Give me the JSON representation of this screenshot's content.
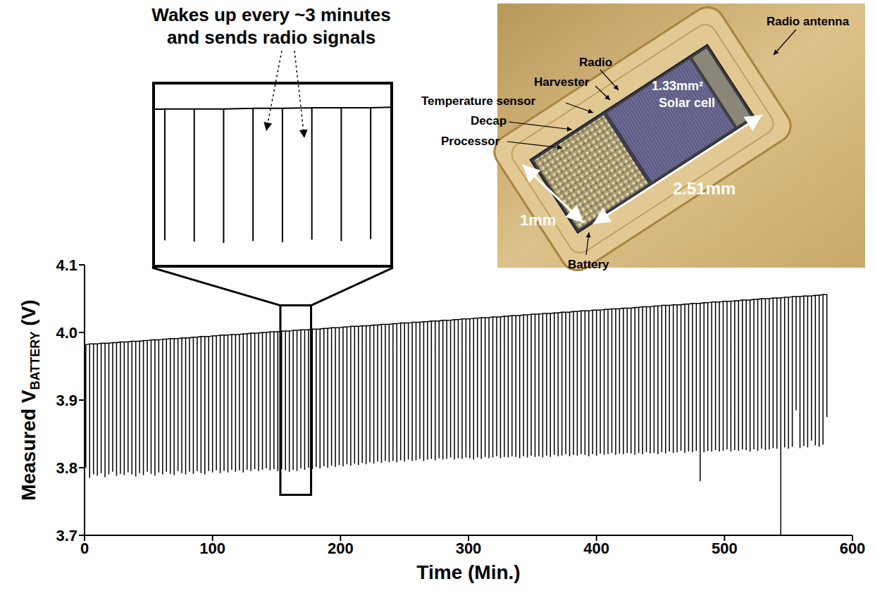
{
  "chart_data": [
    {
      "type": "line",
      "xlabel": "Time (Min.)",
      "ylabel": [
        "Measured V",
        "BATTERY",
        " (V)"
      ],
      "annotation": [
        "Wakes up every ~3 minutes",
        "and sends radio signals"
      ],
      "color": "#000000",
      "grid": false,
      "xlim": [
        0,
        600
      ],
      "xticks": [
        0,
        100,
        200,
        300,
        400,
        500,
        600
      ],
      "ylim": [
        3.7,
        4.1
      ],
      "yticks": [
        3.7,
        3.8,
        3.9,
        {
          "value": 4,
          "label": "4.0"
        },
        4.1
      ],
      "x": [
        1,
        4,
        7,
        10,
        13,
        16,
        19,
        22,
        25,
        28,
        31,
        34,
        37,
        40,
        43,
        46,
        49,
        52,
        55,
        58,
        61,
        64,
        67,
        70,
        73,
        76,
        79,
        82,
        85,
        88,
        91,
        94,
        97,
        100,
        103,
        106,
        109,
        112,
        115,
        118,
        121,
        124,
        127,
        130,
        133,
        136,
        139,
        142,
        145,
        148,
        151,
        154,
        157,
        160,
        163,
        166,
        169,
        172,
        175,
        178,
        181,
        184,
        187,
        190,
        193,
        196,
        199,
        202,
        205,
        208,
        211,
        214,
        217,
        220,
        223,
        226,
        229,
        232,
        235,
        238,
        241,
        244,
        247,
        250,
        253,
        256,
        259,
        262,
        265,
        268,
        271,
        274,
        277,
        280,
        283,
        286,
        289,
        292,
        295,
        298,
        301,
        304,
        307,
        310,
        313,
        316,
        319,
        322,
        325,
        328,
        331,
        334,
        337,
        340,
        343,
        346,
        349,
        352,
        355,
        358,
        361,
        364,
        367,
        370,
        373,
        376,
        379,
        382,
        385,
        388,
        391,
        394,
        397,
        400,
        403,
        406,
        409,
        412,
        415,
        418,
        421,
        424,
        427,
        430,
        433,
        436,
        439,
        442,
        445,
        448,
        451,
        454,
        457,
        460,
        463,
        466,
        469,
        472,
        475,
        478,
        481,
        484,
        487,
        490,
        493,
        496,
        499,
        502,
        505,
        508,
        511,
        514,
        517,
        520,
        523,
        526,
        529,
        532,
        535,
        538,
        541,
        544,
        547,
        550,
        553,
        556,
        559,
        562,
        565,
        568,
        571,
        574,
        577,
        580
      ],
      "high": [
        3.982,
        3.983,
        3.983,
        3.983,
        3.984,
        3.984,
        3.984,
        3.985,
        3.985,
        3.986,
        3.986,
        3.986,
        3.987,
        3.987,
        3.987,
        3.988,
        3.988,
        3.989,
        3.989,
        3.989,
        3.99,
        3.99,
        3.991,
        3.991,
        3.991,
        3.992,
        3.992,
        3.992,
        3.993,
        3.993,
        3.994,
        3.994,
        3.994,
        3.995,
        3.995,
        3.996,
        3.996,
        3.996,
        3.997,
        3.997,
        3.997,
        3.998,
        3.998,
        3.999,
        3.999,
        3.999,
        4.0,
        4.0,
        4.001,
        4.001,
        4.001,
        4.002,
        4.002,
        4.002,
        4.003,
        4.003,
        4.004,
        4.004,
        4.004,
        4.005,
        4.005,
        4.005,
        4.006,
        4.006,
        4.007,
        4.007,
        4.007,
        4.008,
        4.008,
        4.009,
        4.009,
        4.009,
        4.01,
        4.01,
        4.01,
        4.011,
        4.011,
        4.012,
        4.012,
        4.012,
        4.013,
        4.013,
        4.014,
        4.014,
        4.014,
        4.015,
        4.015,
        4.015,
        4.016,
        4.016,
        4.017,
        4.017,
        4.017,
        4.018,
        4.018,
        4.018,
        4.019,
        4.019,
        4.02,
        4.02,
        4.02,
        4.021,
        4.021,
        4.022,
        4.022,
        4.022,
        4.023,
        4.023,
        4.023,
        4.024,
        4.024,
        4.025,
        4.025,
        4.025,
        4.026,
        4.026,
        4.027,
        4.027,
        4.027,
        4.028,
        4.028,
        4.028,
        4.029,
        4.029,
        4.03,
        4.03,
        4.03,
        4.031,
        4.031,
        4.032,
        4.032,
        4.032,
        4.033,
        4.033,
        4.033,
        4.034,
        4.034,
        4.035,
        4.035,
        4.035,
        4.036,
        4.036,
        4.036,
        4.037,
        4.037,
        4.038,
        4.038,
        4.038,
        4.039,
        4.039,
        4.04,
        4.04,
        4.04,
        4.041,
        4.041,
        4.041,
        4.042,
        4.042,
        4.043,
        4.043,
        4.043,
        4.044,
        4.044,
        4.045,
        4.045,
        4.045,
        4.046,
        4.046,
        4.046,
        4.047,
        4.047,
        4.048,
        4.048,
        4.048,
        4.049,
        4.049,
        4.05,
        4.05,
        4.05,
        4.051,
        4.051,
        4.051,
        4.052,
        4.052,
        4.053,
        4.053,
        4.053,
        4.054,
        4.054,
        4.054,
        4.055,
        4.055,
        4.056,
        4.056
      ],
      "low": [
        3.8,
        3.785,
        3.79,
        3.788,
        3.792,
        3.786,
        3.79,
        3.794,
        3.788,
        3.791,
        3.789,
        3.793,
        3.79,
        3.787,
        3.792,
        3.789,
        3.794,
        3.791,
        3.788,
        3.793,
        3.79,
        3.794,
        3.791,
        3.789,
        3.795,
        3.792,
        3.79,
        3.794,
        3.791,
        3.795,
        3.792,
        3.79,
        3.795,
        3.793,
        3.796,
        3.792,
        3.795,
        3.793,
        3.797,
        3.794,
        3.796,
        3.793,
        3.797,
        3.795,
        3.798,
        3.795,
        3.797,
        3.799,
        3.796,
        3.798,
        3.795,
        3.798,
        3.796,
        3.794,
        3.797,
        3.795,
        3.799,
        3.797,
        3.8,
        3.798,
        3.801,
        3.799,
        3.802,
        3.8,
        3.803,
        3.801,
        3.804,
        3.802,
        3.805,
        3.803,
        3.806,
        3.804,
        3.807,
        3.805,
        3.808,
        3.806,
        3.809,
        3.807,
        3.81,
        3.808,
        3.81,
        3.808,
        3.811,
        3.809,
        3.812,
        3.81,
        3.811,
        3.813,
        3.81,
        3.812,
        3.813,
        3.811,
        3.814,
        3.812,
        3.813,
        3.815,
        3.812,
        3.814,
        3.813,
        3.815,
        3.814,
        3.812,
        3.815,
        3.813,
        3.816,
        3.814,
        3.815,
        3.817,
        3.814,
        3.816,
        3.815,
        3.817,
        3.816,
        3.814,
        3.817,
        3.815,
        3.818,
        3.816,
        3.817,
        3.815,
        3.818,
        3.816,
        3.819,
        3.817,
        3.818,
        3.82,
        3.817,
        3.819,
        3.818,
        3.82,
        3.819,
        3.817,
        3.82,
        3.818,
        3.821,
        3.819,
        3.82,
        3.822,
        3.819,
        3.821,
        3.82,
        3.822,
        3.821,
        3.819,
        3.822,
        3.82,
        3.823,
        3.821,
        3.822,
        3.82,
        3.823,
        3.821,
        3.824,
        3.822,
        3.823,
        3.825,
        3.822,
        3.824,
        3.823,
        3.825,
        3.78,
        3.823,
        3.825,
        3.824,
        3.826,
        3.824,
        3.825,
        3.827,
        3.824,
        3.826,
        3.825,
        3.827,
        3.826,
        3.824,
        3.827,
        3.825,
        3.828,
        3.826,
        3.827,
        3.829,
        3.828,
        3.7,
        3.83,
        3.828,
        3.831,
        3.885,
        3.829,
        3.832,
        3.83,
        3.84,
        3.833,
        3.831,
        3.834,
        3.875
      ]
    },
    {
      "type": "line",
      "color": "#000000",
      "xlim": [
        153,
        177
      ],
      "ylim": [
        3.76,
        4.04
      ],
      "tick_labels": false
    }
  ],
  "photo": {
    "labels": [
      "Radio antenna",
      "Radio",
      "Harvester",
      "Temperature sensor",
      "Decap",
      "Processor",
      "Battery"
    ],
    "solar_cell": [
      "1.33mm²",
      "Solar cell"
    ],
    "dimensions": [
      "2.51mm",
      "1mm"
    ]
  }
}
